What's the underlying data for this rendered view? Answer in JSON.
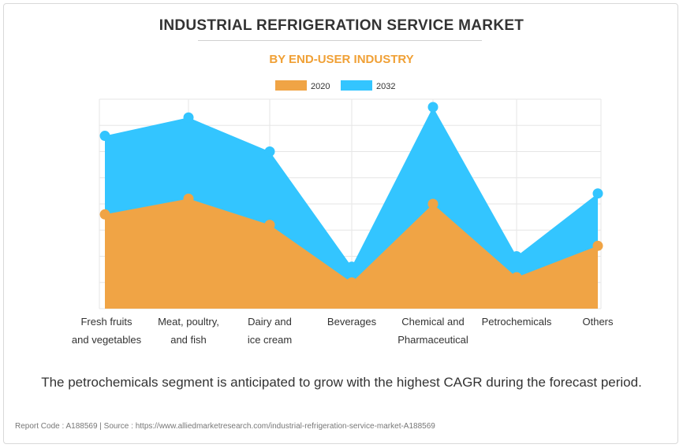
{
  "header": {
    "title": "INDUSTRIAL REFRIGERATION SERVICE MARKET",
    "subtitle": "BY END-USER INDUSTRY"
  },
  "colors": {
    "series_2020": "#f0a445",
    "series_2032": "#33c5ff",
    "grid": "#e6e6e6",
    "title": "#333333",
    "subtitle": "#f0a035"
  },
  "chart_data": {
    "type": "area",
    "title": "INDUSTRIAL REFRIGERATION SERVICE MARKET",
    "subtitle": "BY END-USER INDUSTRY",
    "categories": [
      "Fresh fruits\nand vegetables",
      "Meat, poultry,\nand fish",
      "Dairy and\nice cream",
      "Beverages",
      "Chemical and\nPharmaceutical",
      "Petrochemicals",
      "Others"
    ],
    "series": [
      {
        "name": "2032",
        "values": [
          66,
          73,
          60,
          16,
          77,
          20,
          44
        ]
      },
      {
        "name": "2020",
        "values": [
          36,
          42,
          32,
          10,
          40,
          12,
          24
        ]
      }
    ],
    "ylim": [
      0,
      80
    ],
    "grid": true,
    "legend": "top-center",
    "xlabel": "",
    "ylabel": ""
  },
  "footer": {
    "note": "The petrochemicals segment is anticipated to grow with the highest CAGR during the forecast period.",
    "source": "Report Code : A188569  |  Source : https://www.alliedmarketresearch.com/industrial-refrigeration-service-market-A188569"
  }
}
